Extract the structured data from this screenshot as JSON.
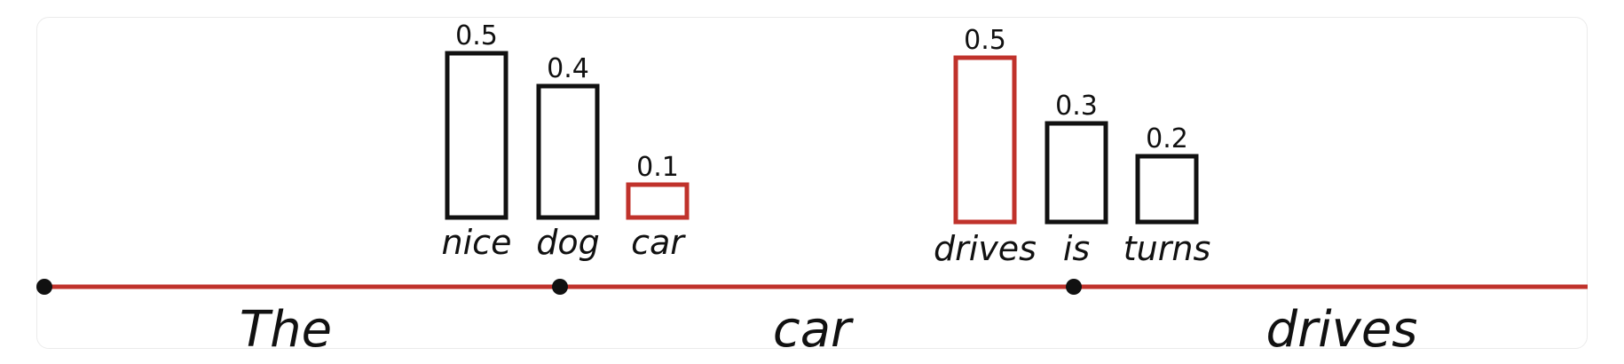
{
  "colors": {
    "highlight": "#c0322b",
    "normal": "#111111",
    "timeline": "#c0322b"
  },
  "tokens": [
    "The",
    "car",
    "drives"
  ],
  "steps": [
    {
      "candidates": [
        {
          "word": "nice",
          "prob": 0.5,
          "prob_label": "0.5",
          "selected": false
        },
        {
          "word": "dog",
          "prob": 0.4,
          "prob_label": "0.4",
          "selected": false
        },
        {
          "word": "car",
          "prob": 0.1,
          "prob_label": "0.1",
          "selected": true
        }
      ]
    },
    {
      "candidates": [
        {
          "word": "drives",
          "prob": 0.5,
          "prob_label": "0.5",
          "selected": true
        },
        {
          "word": "is",
          "prob": 0.3,
          "prob_label": "0.3",
          "selected": false
        },
        {
          "word": "turns",
          "prob": 0.2,
          "prob_label": "0.2",
          "selected": false
        }
      ]
    }
  ]
}
